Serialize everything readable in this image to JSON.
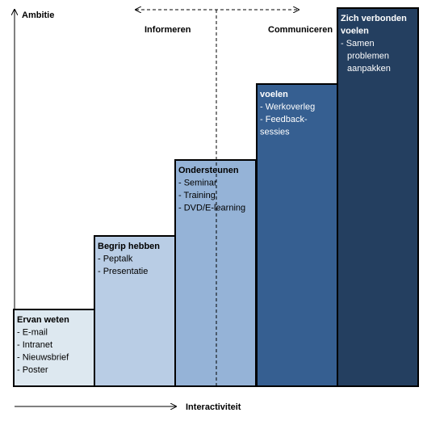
{
  "axes": {
    "y_label": "Ambitie",
    "x_label": "Interactiviteit"
  },
  "zones": [
    "Informeren",
    "Communiceren"
  ],
  "steps": [
    {
      "title_lines": [
        "Ervan weten"
      ],
      "items": [
        "- E-mail",
        "- Intranet",
        "- Nieuwsbrief",
        "- Poster"
      ]
    },
    {
      "title_lines": [
        "Begrip hebben"
      ],
      "items": [
        "- Peptalk",
        "- Presentatie"
      ]
    },
    {
      "title_lines": [
        "Ondersteunen"
      ],
      "items": [
        "- Seminar",
        "- Training",
        "- DVD/E-learning"
      ]
    },
    {
      "title_lines": [
        "voelen"
      ],
      "items": [
        "- Werkoverleg",
        "- Feedback-",
        "sessies"
      ]
    },
    {
      "title_lines": [
        "Zich verbonden",
        "voelen"
      ],
      "items": [
        "- Samen",
        "problemen",
        "aanpakken"
      ]
    }
  ]
}
